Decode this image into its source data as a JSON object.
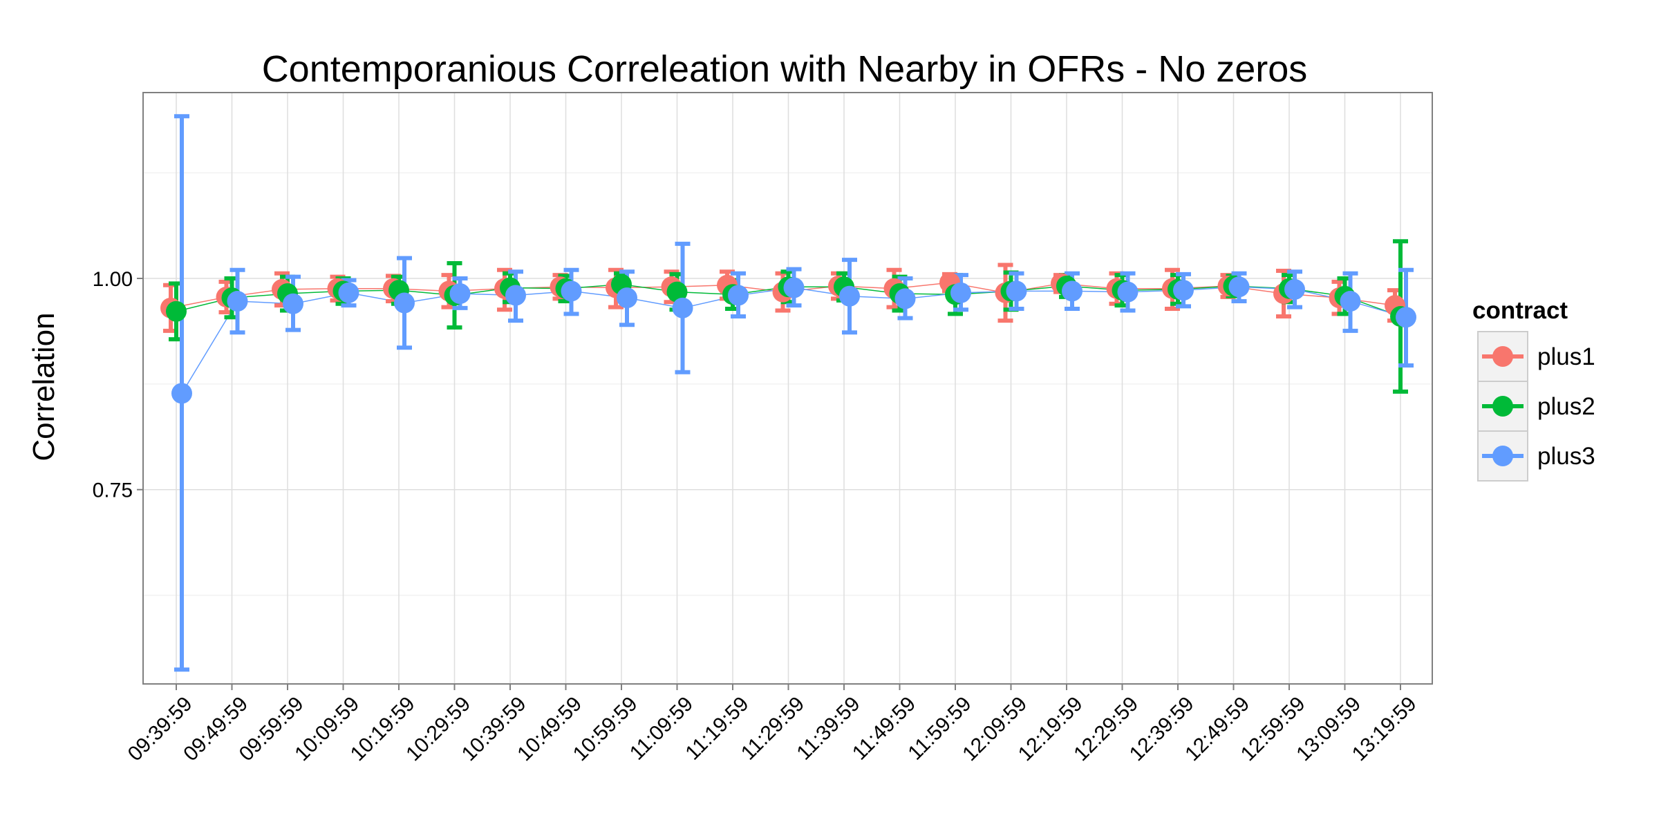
{
  "chart_data": {
    "type": "scatter",
    "title": "Contemporanious Correleation with Nearby in OFRs - No zeros",
    "xlabel": "",
    "ylabel": "Correlation",
    "ylim": [
      0.52,
      1.22
    ],
    "yticks": [
      0.75,
      1.0
    ],
    "ytick_labels": [
      "0.75",
      "1.00"
    ],
    "grid": true,
    "legend": {
      "title": "contract",
      "position": "right"
    },
    "categories": [
      "09:39:59",
      "09:49:59",
      "09:59:59",
      "10:09:59",
      "10:19:59",
      "10:29:59",
      "10:39:59",
      "10:49:59",
      "10:59:59",
      "11:09:59",
      "11:19:59",
      "11:29:59",
      "11:39:59",
      "11:49:59",
      "11:59:59",
      "12:09:59",
      "12:19:59",
      "12:29:59",
      "12:39:59",
      "12:49:59",
      "12:59:59",
      "13:09:59",
      "13:19:59"
    ],
    "series": [
      {
        "name": "plus1",
        "color": "#F8766D",
        "values": [
          0.965,
          0.978,
          0.987,
          0.988,
          0.988,
          0.985,
          0.988,
          0.99,
          0.989,
          0.99,
          0.992,
          0.984,
          0.991,
          0.988,
          0.995,
          0.983,
          0.994,
          0.988,
          0.988,
          0.991,
          0.982,
          0.977,
          0.968
        ],
        "lower": [
          0.938,
          0.96,
          0.968,
          0.974,
          0.973,
          0.966,
          0.963,
          0.976,
          0.966,
          0.972,
          0.976,
          0.962,
          0.976,
          0.966,
          0.985,
          0.95,
          0.984,
          0.97,
          0.964,
          0.978,
          0.955,
          0.958,
          0.95
        ],
        "upper": [
          0.992,
          0.996,
          1.006,
          1.002,
          1.003,
          1.004,
          1.01,
          1.004,
          1.01,
          1.008,
          1.008,
          1.006,
          1.006,
          1.01,
          1.005,
          1.016,
          1.004,
          1.006,
          1.01,
          1.004,
          1.009,
          0.996,
          0.986
        ]
      },
      {
        "name": "plus2",
        "color": "#00BA38",
        "values": [
          0.961,
          0.977,
          0.982,
          0.985,
          0.986,
          0.98,
          0.989,
          0.988,
          0.993,
          0.984,
          0.981,
          0.99,
          0.99,
          0.982,
          0.981,
          0.985,
          0.991,
          0.986,
          0.987,
          0.991,
          0.988,
          0.979,
          0.955
        ],
        "lower": [
          0.928,
          0.954,
          0.962,
          0.97,
          0.97,
          0.942,
          0.972,
          0.973,
          0.98,
          0.963,
          0.964,
          0.972,
          0.974,
          0.962,
          0.958,
          0.963,
          0.978,
          0.968,
          0.97,
          0.979,
          0.972,
          0.958,
          0.866
        ],
        "upper": [
          0.994,
          1.0,
          1.002,
          1.0,
          1.002,
          1.018,
          1.006,
          1.003,
          1.006,
          1.005,
          0.998,
          1.008,
          1.006,
          1.002,
          1.004,
          1.007,
          1.004,
          1.004,
          1.004,
          1.003,
          1.004,
          1.0,
          1.044
        ]
      },
      {
        "name": "plus3",
        "color": "#619CFF",
        "values": [
          0.864,
          0.973,
          0.97,
          0.983,
          0.971,
          0.982,
          0.98,
          0.985,
          0.977,
          0.965,
          0.98,
          0.989,
          0.979,
          0.976,
          0.983,
          0.985,
          0.985,
          0.984,
          0.986,
          0.99,
          0.987,
          0.973,
          0.954
        ],
        "lower": [
          0.537,
          0.936,
          0.939,
          0.968,
          0.918,
          0.965,
          0.95,
          0.958,
          0.945,
          0.889,
          0.955,
          0.968,
          0.936,
          0.953,
          0.963,
          0.964,
          0.964,
          0.962,
          0.967,
          0.973,
          0.966,
          0.938,
          0.897
        ],
        "upper": [
          1.192,
          1.01,
          1.002,
          0.998,
          1.024,
          1.0,
          1.008,
          1.01,
          1.008,
          1.041,
          1.006,
          1.011,
          1.022,
          1.0,
          1.004,
          1.006,
          1.006,
          1.006,
          1.005,
          1.006,
          1.008,
          1.006,
          1.01
        ]
      }
    ]
  }
}
